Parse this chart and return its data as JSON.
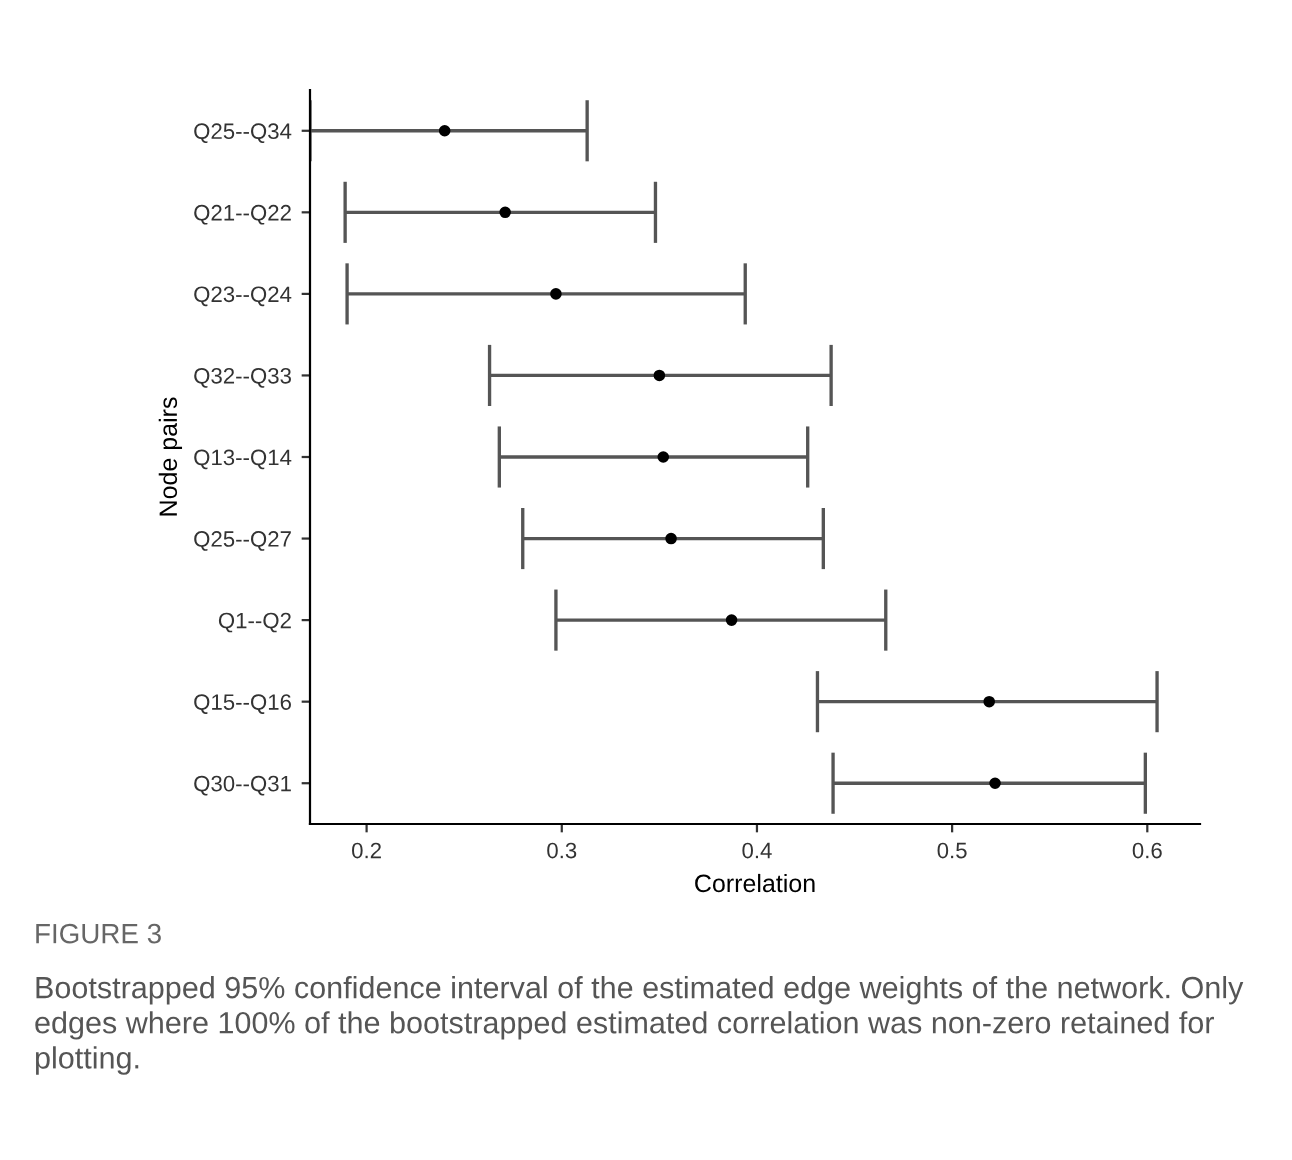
{
  "chart_data": {
    "type": "scatter",
    "orientation": "horizontal",
    "xlabel": "Correlation",
    "ylabel": "Node pairs",
    "categories": [
      "Q25--Q34",
      "Q21--Q22",
      "Q23--Q24",
      "Q32--Q33",
      "Q13--Q14",
      "Q25--Q27",
      "Q1--Q2",
      "Q15--Q16",
      "Q30--Q31"
    ],
    "values": [
      0.24,
      0.271,
      0.297,
      0.35,
      0.352,
      0.356,
      0.387,
      0.519,
      0.522
    ],
    "errors": [
      [
        0.171,
        0.313
      ],
      [
        0.189,
        0.348
      ],
      [
        0.19,
        0.394
      ],
      [
        0.263,
        0.438
      ],
      [
        0.268,
        0.426
      ],
      [
        0.28,
        0.434
      ],
      [
        0.297,
        0.466
      ],
      [
        0.431,
        0.605
      ],
      [
        0.439,
        0.599
      ]
    ],
    "color": "#000000",
    "marker": "circle",
    "grid": false,
    "legend": false,
    "xlim": [
      0.171,
      0.627
    ],
    "xticks": [
      0.2,
      0.3,
      0.4,
      0.5,
      0.6
    ],
    "annotations": [
      "FIGURE 3",
      "Bootstrapped 95% confidence interval of the estimated edge weights of the network. Only edges where 100% of the bootstrapped estimated correlation was non-zero retained for plotting."
    ]
  }
}
